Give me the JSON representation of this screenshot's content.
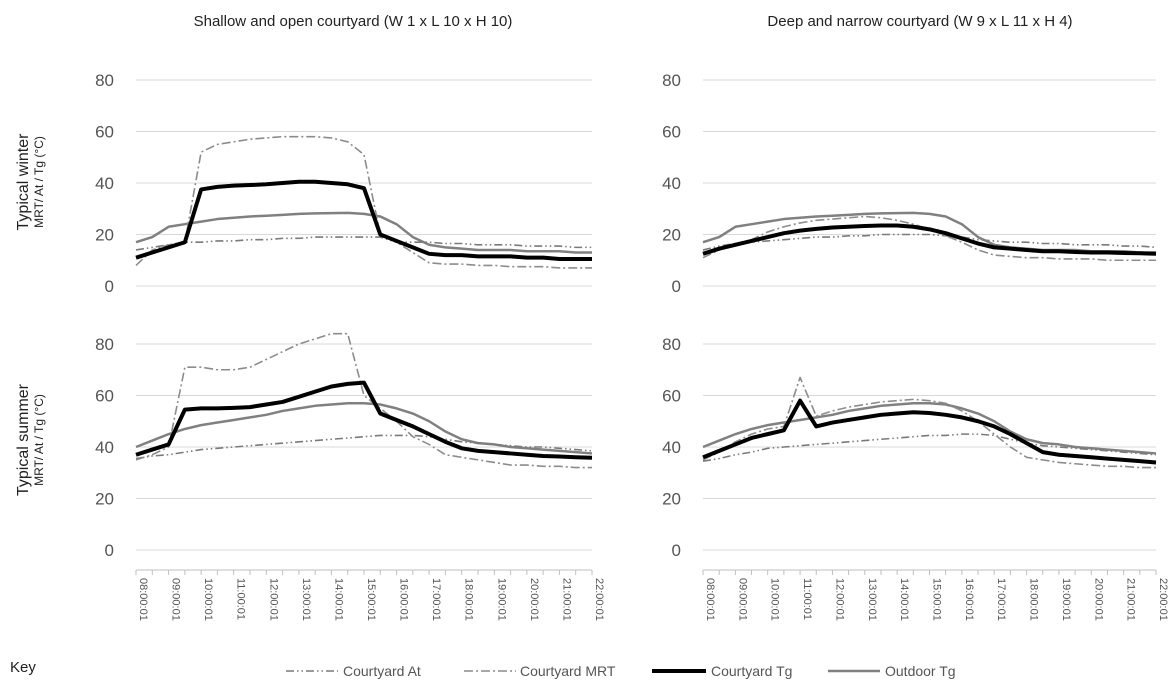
{
  "key_label": "Key",
  "row_labels": [
    {
      "title": "Typical winter",
      "subtitle": "MRT/ At / Tg (°C)"
    },
    {
      "title": "Typical summer",
      "subtitle": "MRT/ At / Tg (°C)"
    }
  ],
  "column_titles": [
    "Shallow and open courtyard (W  1 x L 10 x H 10)",
    "Deep and narrow courtyard (W  9 x L 11 x H 4)"
  ],
  "colors": {
    "courtyard_at": "#7a7a7a",
    "courtyard_mrt": "#8c8c8c",
    "courtyard_tg": "#000000",
    "outdoor_tg": "#808080",
    "gridline": "#d9d9d9",
    "tick_text": "#595959"
  },
  "legend": [
    {
      "label": "Courtyard At",
      "style": "dash-dot-dot"
    },
    {
      "label": "Courtyard MRT",
      "style": "dash-dot"
    },
    {
      "label": "Courtyard Tg",
      "style": "solid-bold"
    },
    {
      "label": "Outdoor Tg",
      "style": "solid"
    }
  ],
  "chart_data": [
    {
      "id": "winter-shallow",
      "type": "line",
      "title": "Shallow and open courtyard (W  1 x L 10 x H 10)",
      "ylabel": "Typical winter MRT/ At / Tg (°C)",
      "ylim": [
        0,
        80
      ],
      "yticks": [
        0,
        20,
        40,
        60,
        80
      ],
      "grid": true,
      "x": [
        "08:00:01",
        "08:30:01",
        "09:00:01",
        "09:30:01",
        "10:00:01",
        "10:30:01",
        "11:00:01",
        "11:30:01",
        "12:00:01",
        "12:30:01",
        "13:00:01",
        "13:30:01",
        "14:00:01",
        "14:30:01",
        "15:00:01",
        "15:30:01",
        "16:00:01",
        "16:30:01",
        "17:00:01",
        "17:30:01",
        "18:00:01",
        "18:30:01",
        "19:00:01",
        "19:30:01",
        "20:00:01",
        "20:30:01",
        "21:00:01",
        "21:30:01",
        "22:00:01"
      ],
      "series": [
        {
          "name": "Courtyard At",
          "values": [
            14,
            15,
            16,
            17,
            17,
            17.5,
            17.5,
            18,
            18,
            18.5,
            18.5,
            19,
            19,
            19,
            19,
            19,
            17,
            17,
            17,
            16.5,
            16.5,
            16,
            16,
            16,
            15.5,
            15.5,
            15.5,
            15,
            15
          ]
        },
        {
          "name": "Courtyard MRT",
          "values": [
            8,
            14,
            16,
            17,
            52,
            55,
            56,
            57,
            57.5,
            58,
            58,
            58,
            57.5,
            56,
            51,
            20,
            17,
            13,
            9,
            8.5,
            8.5,
            8,
            8,
            7.5,
            7.5,
            7.5,
            7,
            7,
            7
          ]
        },
        {
          "name": "Courtyard Tg",
          "values": [
            11,
            13,
            15,
            17,
            37.5,
            38.5,
            39,
            39.2,
            39.5,
            40,
            40.5,
            40.5,
            40,
            39.5,
            38,
            20,
            17.5,
            15,
            12.5,
            12,
            12,
            11.5,
            11.5,
            11.5,
            11,
            11,
            10.5,
            10.5,
            10.5
          ]
        },
        {
          "name": "Outdoor Tg",
          "values": [
            17,
            19,
            23,
            24,
            25,
            26,
            26.5,
            27,
            27.3,
            27.6,
            28,
            28.2,
            28.3,
            28.4,
            28,
            27,
            24,
            19,
            16,
            15,
            14.5,
            14,
            14,
            14,
            13.5,
            13.5,
            13.5,
            13,
            13
          ]
        }
      ]
    },
    {
      "id": "winter-deep",
      "type": "line",
      "title": "Deep and narrow courtyard (W  9 x L 11 x H 4)",
      "ylim": [
        0,
        80
      ],
      "yticks": [
        0,
        20,
        40,
        60,
        80
      ],
      "grid": true,
      "x": [
        "08:00:01",
        "08:30:01",
        "09:00:01",
        "09:30:01",
        "10:00:01",
        "10:30:01",
        "11:00:01",
        "11:30:01",
        "12:00:01",
        "12:30:01",
        "13:00:01",
        "13:30:01",
        "14:00:01",
        "14:30:01",
        "15:00:01",
        "15:30:01",
        "16:00:01",
        "16:30:01",
        "17:00:01",
        "17:30:01",
        "18:00:01",
        "18:30:01",
        "19:00:01",
        "19:30:01",
        "20:00:01",
        "20:30:01",
        "21:00:01",
        "21:30:01",
        "22:00:01"
      ],
      "series": [
        {
          "name": "Courtyard At",
          "values": [
            14,
            15.5,
            16.5,
            17,
            17.5,
            18,
            18.5,
            19,
            19,
            19.5,
            19.5,
            20,
            20,
            20,
            20,
            19.5,
            19,
            18,
            17.5,
            17,
            17,
            16.5,
            16.5,
            16,
            16,
            16,
            15.5,
            15.5,
            15
          ]
        },
        {
          "name": "Courtyard MRT",
          "values": [
            11,
            14,
            16.5,
            18,
            21,
            23,
            24.5,
            25.5,
            26,
            26.5,
            27,
            26.5,
            25.5,
            24,
            22,
            19.5,
            17,
            14,
            12,
            11.5,
            11,
            11,
            10.5,
            10.5,
            10.5,
            10,
            10,
            10,
            10
          ]
        },
        {
          "name": "Courtyard Tg",
          "values": [
            12.5,
            14.5,
            16,
            17.5,
            19,
            20.5,
            21.5,
            22.2,
            22.7,
            23,
            23.3,
            23.5,
            23.5,
            23,
            22,
            20.5,
            18.5,
            16.5,
            15,
            14.5,
            14,
            13.5,
            13.5,
            13.2,
            13,
            13,
            12.8,
            12.7,
            12.5
          ]
        },
        {
          "name": "Outdoor Tg",
          "values": [
            17,
            19,
            23,
            24,
            25,
            26,
            26.5,
            27,
            27.3,
            27.6,
            28,
            28.2,
            28.3,
            28.4,
            28,
            27,
            24,
            19,
            16,
            15,
            14.5,
            14,
            14,
            14,
            13.5,
            13.5,
            13.5,
            13,
            13
          ]
        }
      ]
    },
    {
      "id": "summer-shallow",
      "type": "line",
      "title": "Shallow and open courtyard (W  1 x L 10 x H 10)",
      "ylabel": "Typical summer MRT/ At / Tg (°C)",
      "ylim": [
        0,
        80
      ],
      "yticks": [
        0,
        20,
        40,
        60,
        80
      ],
      "grid": true,
      "x": [
        "08:00:01",
        "08:30:01",
        "09:00:01",
        "09:30:01",
        "10:00:01",
        "10:30:01",
        "11:00:01",
        "11:30:01",
        "12:00:01",
        "12:30:01",
        "13:00:01",
        "13:30:01",
        "14:00:01",
        "14:30:01",
        "15:00:01",
        "15:30:01",
        "16:00:01",
        "16:30:01",
        "17:00:01",
        "17:30:01",
        "18:00:01",
        "18:30:01",
        "19:00:01",
        "19:30:01",
        "20:00:01",
        "20:30:01",
        "21:00:01",
        "21:30:01",
        "22:00:01"
      ],
      "series": [
        {
          "name": "Courtyard At",
          "values": [
            35.5,
            36.5,
            37,
            38,
            39,
            39.5,
            40,
            40.5,
            41,
            41.5,
            42,
            42.5,
            43,
            43.5,
            44,
            44.5,
            44.5,
            44.5,
            44,
            43,
            42,
            41.5,
            41,
            40.5,
            40,
            40,
            39.5,
            39,
            38.5
          ]
        },
        {
          "name": "Courtyard MRT",
          "values": [
            35,
            37,
            40,
            71,
            71,
            70,
            70,
            71,
            74,
            77,
            80,
            82,
            84,
            84,
            60,
            55,
            50,
            44,
            41,
            37,
            36,
            35,
            34,
            33,
            33,
            32.5,
            32.5,
            32,
            32
          ]
        },
        {
          "name": "Courtyard Tg",
          "values": [
            37,
            39,
            41,
            54.5,
            55,
            55,
            55.2,
            55.5,
            56.5,
            57.5,
            59.5,
            61.5,
            63.5,
            64.5,
            65,
            53,
            50.5,
            48,
            45,
            42,
            39.5,
            38.5,
            38,
            37.5,
            37,
            36.5,
            36.3,
            36,
            35.8
          ]
        },
        {
          "name": "Outdoor Tg",
          "values": [
            40,
            42.5,
            45,
            47,
            48.5,
            49.5,
            50.5,
            51.5,
            52.5,
            54,
            55,
            56,
            56.5,
            57,
            57,
            56.5,
            55,
            53,
            50,
            46,
            43,
            41.5,
            41,
            40,
            39.5,
            39,
            38.5,
            38,
            37.5
          ]
        }
      ]
    },
    {
      "id": "summer-deep",
      "type": "line",
      "title": "Deep and narrow courtyard (W  9 x L 11 x H 4)",
      "ylim": [
        0,
        80
      ],
      "yticks": [
        0,
        20,
        40,
        60,
        80
      ],
      "grid": true,
      "x": [
        "08:00:01",
        "08:30:01",
        "09:00:01",
        "09:30:01",
        "10:00:01",
        "10:30:01",
        "11:00:01",
        "11:30:01",
        "12:00:01",
        "12:30:01",
        "13:00:01",
        "13:30:01",
        "14:00:01",
        "14:30:01",
        "15:00:01",
        "15:30:01",
        "16:00:01",
        "16:30:01",
        "17:00:01",
        "17:30:01",
        "18:00:01",
        "18:30:01",
        "19:00:01",
        "19:30:01",
        "20:00:01",
        "20:30:01",
        "21:00:01",
        "21:30:01",
        "22:00:01"
      ],
      "series": [
        {
          "name": "Courtyard At",
          "values": [
            34.5,
            35.5,
            37,
            38,
            39.5,
            40,
            40.5,
            41,
            41.5,
            42,
            42.5,
            43,
            43.5,
            44,
            44.5,
            44.5,
            45,
            45,
            44.5,
            43,
            41.5,
            40.5,
            40,
            39.5,
            39,
            38.5,
            38,
            37.5,
            37
          ]
        },
        {
          "name": "Courtyard MRT",
          "values": [
            35,
            38,
            42,
            45,
            47,
            48,
            67,
            52,
            54,
            55.5,
            56.5,
            57.5,
            58,
            58.5,
            58,
            57,
            54,
            50,
            45,
            40,
            36,
            35,
            34,
            33.5,
            33,
            32.5,
            32.5,
            32,
            32
          ]
        },
        {
          "name": "Courtyard Tg",
          "values": [
            36,
            38.5,
            41,
            43.5,
            45,
            46.5,
            58,
            48,
            49.5,
            50.5,
            51.5,
            52.5,
            53,
            53.5,
            53.2,
            52.5,
            51.5,
            50,
            48,
            45,
            41.5,
            38,
            37,
            36.5,
            36,
            35.5,
            35,
            34.5,
            34
          ]
        },
        {
          "name": "Outdoor Tg",
          "values": [
            40,
            42.5,
            45,
            47,
            48.5,
            49.5,
            50.5,
            51.5,
            52.5,
            54,
            55,
            56,
            56.5,
            57,
            57,
            56.5,
            55,
            53,
            50,
            46,
            43,
            41.5,
            41,
            40,
            39.5,
            39,
            38.5,
            38,
            37.5
          ]
        }
      ]
    }
  ]
}
